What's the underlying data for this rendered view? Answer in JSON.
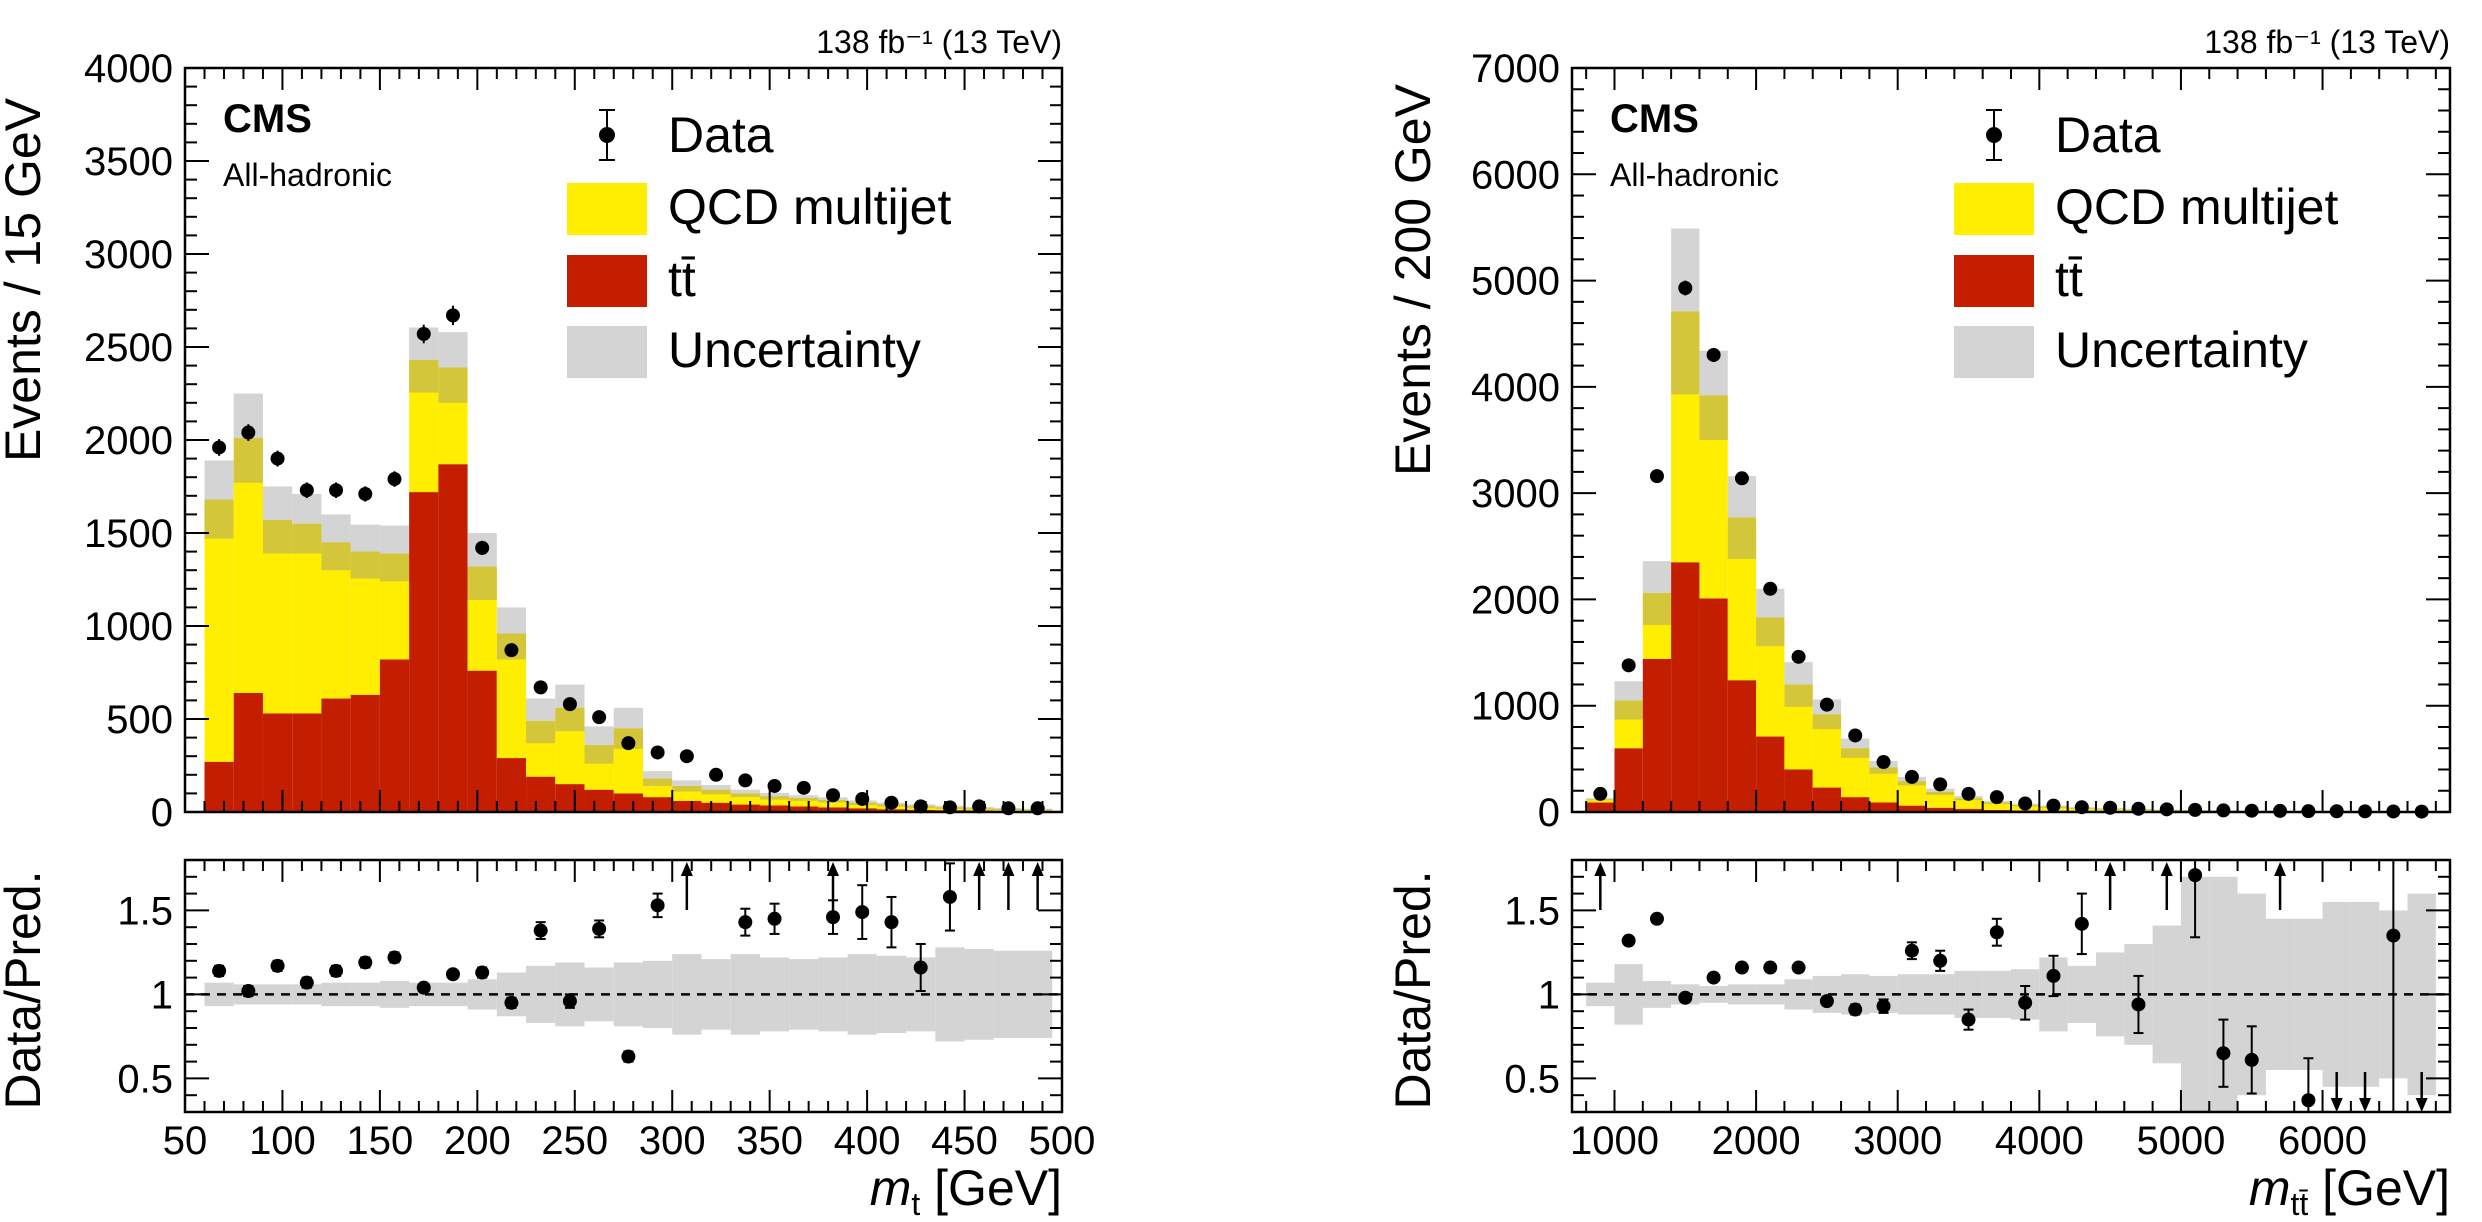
{
  "colors": {
    "qcd": "#ffee00",
    "ttbar": "#c41e00",
    "uncertainty": "#d4d4d4",
    "overlap": "#d4c63a",
    "data": "#000000"
  },
  "legend": {
    "data": "Data",
    "qcd": "QCD multijet",
    "ttbar": "tt̄",
    "uncertainty": "Uncertainty"
  },
  "chart_data": [
    {
      "type": "bar",
      "stacked": true,
      "lumi_label": "138 fb⁻¹ (13 TeV)",
      "experiment": "CMS",
      "channel": "All-hadronic",
      "ylabel": "Events / 15 GeV",
      "ratio_ylabel": "Data/Pred.",
      "xlabel_var": "m",
      "xlabel_sub": "t",
      "xlabel_unit": " [GeV]",
      "xlim": [
        50,
        500
      ],
      "ylim": [
        0,
        4000
      ],
      "ratio_ylim": [
        0.3,
        1.8
      ],
      "x_ticks": [
        50,
        100,
        150,
        200,
        250,
        300,
        350,
        400,
        450,
        500
      ],
      "x_tick_labels": [
        "50",
        "100",
        "150",
        "200",
        "250",
        "300",
        "350",
        "400",
        "450",
        "500"
      ],
      "y_ticks": [
        0,
        500,
        1000,
        1500,
        2000,
        2500,
        3000,
        3500,
        4000
      ],
      "y_tick_labels": [
        "0",
        "500",
        "1000",
        "1500",
        "2000",
        "2500",
        "3000",
        "3500",
        "4000"
      ],
      "ratio_ticks": [
        0.5,
        1,
        1.5
      ],
      "ratio_tick_labels": [
        "0.5",
        "1",
        "1.5"
      ],
      "bin_edges": [
        60,
        75,
        90,
        105,
        120,
        135,
        150,
        165,
        180,
        195,
        210,
        225,
        240,
        255,
        270,
        285,
        300,
        315,
        330,
        345,
        360,
        375,
        390,
        405,
        420,
        435,
        450,
        465,
        480,
        495
      ],
      "series": [
        {
          "name": "tt̄",
          "values": [
            270,
            640,
            530,
            530,
            610,
            630,
            820,
            1720,
            1870,
            760,
            290,
            190,
            150,
            120,
            100,
            80,
            60,
            50,
            40,
            35,
            30,
            25,
            20,
            15,
            12,
            10,
            8,
            6,
            5
          ]
        },
        {
          "name": "QCD multijet",
          "values": [
            1410,
            1370,
            1040,
            1020,
            840,
            770,
            570,
            710,
            520,
            560,
            670,
            300,
            410,
            240,
            350,
            100,
            80,
            70,
            60,
            50,
            45,
            40,
            30,
            25,
            20,
            15,
            12,
            10,
            8
          ]
        }
      ],
      "uncertainty": [
        210,
        240,
        180,
        160,
        150,
        145,
        150,
        175,
        190,
        180,
        140,
        120,
        125,
        100,
        110,
        40,
        30,
        25,
        20,
        18,
        15,
        14,
        12,
        10,
        9,
        8,
        7,
        6,
        5
      ],
      "data": {
        "x": [
          67.5,
          82.5,
          97.5,
          112.5,
          127.5,
          142.5,
          157.5,
          172.5,
          187.5,
          202.5,
          217.5,
          232.5,
          247.5,
          262.5,
          277.5,
          292.5,
          307.5,
          322.5,
          337.5,
          352.5,
          367.5,
          382.5,
          397.5,
          412.5,
          427.5,
          442.5,
          457.5,
          472.5,
          487.5
        ],
        "y": [
          1960,
          2040,
          1900,
          1730,
          1730,
          1710,
          1790,
          2570,
          2670,
          1420,
          870,
          670,
          580,
          510,
          370,
          320,
          300,
          200,
          170,
          140,
          130,
          90,
          70,
          50,
          30,
          25,
          30,
          20,
          20
        ],
        "err": [
          45,
          45,
          43,
          42,
          42,
          41,
          42,
          50,
          52,
          38,
          30,
          26,
          24,
          23,
          19,
          18,
          17,
          14,
          13,
          12,
          11,
          9,
          8,
          7,
          5,
          5,
          5,
          4,
          4
        ]
      },
      "ratio": {
        "x": [
          67.5,
          82.5,
          97.5,
          112.5,
          127.5,
          142.5,
          157.5,
          172.5,
          187.5,
          202.5,
          217.5,
          232.5,
          247.5,
          262.5,
          277.5,
          292.5,
          337.5,
          352.5,
          382.5,
          397.5,
          412.5,
          427.5,
          442.5
        ],
        "y": [
          1.14,
          1.02,
          1.17,
          1.07,
          1.14,
          1.19,
          1.22,
          1.04,
          1.12,
          1.13,
          0.95,
          1.38,
          0.96,
          1.39,
          0.63,
          1.53,
          1.43,
          1.45,
          1.46,
          1.49,
          1.43,
          1.16,
          1.58
        ],
        "err": [
          0.03,
          0.03,
          0.03,
          0.03,
          0.03,
          0.03,
          0.03,
          0.02,
          0.02,
          0.03,
          0.03,
          0.05,
          0.04,
          0.05,
          0.03,
          0.07,
          0.08,
          0.09,
          0.1,
          0.16,
          0.15,
          0.14,
          0.2
        ],
        "arrows_up": [
          307.5,
          382.5,
          457.5,
          472.5,
          487.5
        ],
        "band": [
          0.07,
          0.06,
          0.06,
          0.06,
          0.07,
          0.07,
          0.08,
          0.07,
          0.07,
          0.09,
          0.13,
          0.17,
          0.19,
          0.16,
          0.19,
          0.2,
          0.24,
          0.21,
          0.24,
          0.22,
          0.21,
          0.22,
          0.24,
          0.23,
          0.22,
          0.28,
          0.27,
          0.26,
          0.26
        ]
      }
    },
    {
      "type": "bar",
      "stacked": true,
      "lumi_label": "138 fb⁻¹ (13 TeV)",
      "experiment": "CMS",
      "channel": "All-hadronic",
      "ylabel": "Events / 200 GeV",
      "ratio_ylabel": "Data/Pred.",
      "xlabel_var": "m",
      "xlabel_sub": "tt̄",
      "xlabel_unit": " [GeV]",
      "xlim": [
        700,
        6900
      ],
      "ylim": [
        0,
        7000
      ],
      "ratio_ylim": [
        0.3,
        1.8
      ],
      "x_ticks": [
        1000,
        2000,
        3000,
        4000,
        5000,
        6000
      ],
      "x_tick_labels": [
        "1000",
        "2000",
        "3000",
        "4000",
        "5000",
        "6000"
      ],
      "y_ticks": [
        0,
        1000,
        2000,
        3000,
        4000,
        5000,
        6000,
        7000
      ],
      "y_tick_labels": [
        "0",
        "1000",
        "2000",
        "3000",
        "4000",
        "5000",
        "6000",
        "7000"
      ],
      "ratio_ticks": [
        0.5,
        1,
        1.5
      ],
      "ratio_tick_labels": [
        "0.5",
        "1",
        "1.5"
      ],
      "bin_edges": [
        800,
        1000,
        1200,
        1400,
        1600,
        1800,
        2000,
        2200,
        2400,
        2600,
        2800,
        3000,
        3200,
        3400,
        3600,
        3800,
        4000,
        4200,
        4400,
        4600,
        4800,
        5000,
        5200,
        5400,
        5600,
        5800,
        6000,
        6200,
        6400,
        6600,
        6800
      ],
      "series": [
        {
          "name": "tt̄",
          "values": [
            90,
            600,
            1440,
            2350,
            2010,
            1240,
            710,
            400,
            230,
            140,
            90,
            60,
            40,
            30,
            20,
            15,
            10,
            8,
            6,
            5,
            4,
            3,
            2,
            2,
            1,
            1,
            1,
            1,
            1,
            1
          ]
        },
        {
          "name": "QCD multijet",
          "values": [
            30,
            450,
            620,
            2360,
            1910,
            1530,
            1120,
            800,
            690,
            460,
            330,
            230,
            150,
            100,
            70,
            50,
            40,
            30,
            25,
            20,
            15,
            12,
            10,
            8,
            6,
            5,
            4,
            3,
            3,
            2
          ]
        },
        {
          "name": "Uncertainty",
          "values": [
            10,
            180,
            300,
            780,
            420,
            390,
            270,
            210,
            140,
            90,
            60,
            40,
            30,
            20,
            15,
            12,
            10,
            8,
            6,
            5,
            4,
            3,
            3,
            2,
            2,
            2,
            1,
            1,
            1,
            1
          ]
        }
      ],
      "uncertainty": [
        10,
        180,
        300,
        780,
        420,
        390,
        270,
        210,
        140,
        90,
        60,
        40,
        30,
        20,
        15,
        12,
        10,
        8,
        6,
        5,
        4,
        3,
        3,
        2,
        2,
        2,
        1,
        1,
        1,
        1
      ],
      "data": {
        "x": [
          900,
          1100,
          1300,
          1500,
          1700,
          1900,
          2100,
          2300,
          2500,
          2700,
          2900,
          3100,
          3300,
          3500,
          3700,
          3900,
          4100,
          4300,
          4500,
          4700,
          4900,
          5100,
          5300,
          5500,
          5700,
          5900,
          6100,
          6300,
          6500,
          6700
        ],
        "y": [
          170,
          1380,
          3160,
          4930,
          4300,
          3140,
          2100,
          1460,
          1010,
          720,
          470,
          330,
          260,
          170,
          140,
          80,
          60,
          45,
          40,
          30,
          25,
          20,
          15,
          12,
          10,
          8,
          7,
          6,
          5,
          4
        ],
        "err": [
          13,
          37,
          56,
          70,
          66,
          56,
          46,
          38,
          32,
          27,
          22,
          18,
          16,
          13,
          12,
          9,
          8,
          7,
          6,
          5,
          5,
          4,
          4,
          3,
          3,
          3,
          3,
          2,
          2,
          2
        ]
      },
      "ratio": {
        "x": [
          1100,
          1300,
          1500,
          1700,
          1900,
          2100,
          2300,
          2500,
          2700,
          2900,
          3100,
          3300,
          3500,
          3700,
          3900,
          4100,
          4300,
          4700,
          5100,
          5300,
          5500,
          5900,
          6500
        ],
        "y": [
          1.32,
          1.45,
          0.98,
          1.1,
          1.16,
          1.16,
          1.16,
          0.96,
          0.91,
          0.93,
          1.26,
          1.2,
          0.85,
          1.37,
          0.95,
          1.11,
          1.42,
          0.94,
          1.71,
          0.65,
          0.61,
          0.37,
          1.35
        ],
        "err": [
          0.02,
          0.02,
          0.01,
          0.01,
          0.01,
          0.02,
          0.02,
          0.02,
          0.03,
          0.04,
          0.05,
          0.06,
          0.06,
          0.08,
          0.1,
          0.12,
          0.18,
          0.17,
          0.37,
          0.2,
          0.2,
          0.25,
          1.3
        ],
        "arrows_up": [
          900,
          4500,
          4900,
          5700
        ],
        "arrows_down": [
          6100,
          6300,
          6700
        ],
        "band": [
          0.07,
          0.18,
          0.08,
          0.06,
          0.05,
          0.06,
          0.06,
          0.09,
          0.11,
          0.12,
          0.11,
          0.12,
          0.12,
          0.14,
          0.14,
          0.15,
          0.22,
          0.17,
          0.25,
          0.3,
          0.41,
          0.7,
          0.7,
          0.6,
          0.45,
          0.45,
          0.55,
          0.55,
          0.5,
          0.6
        ]
      }
    }
  ]
}
